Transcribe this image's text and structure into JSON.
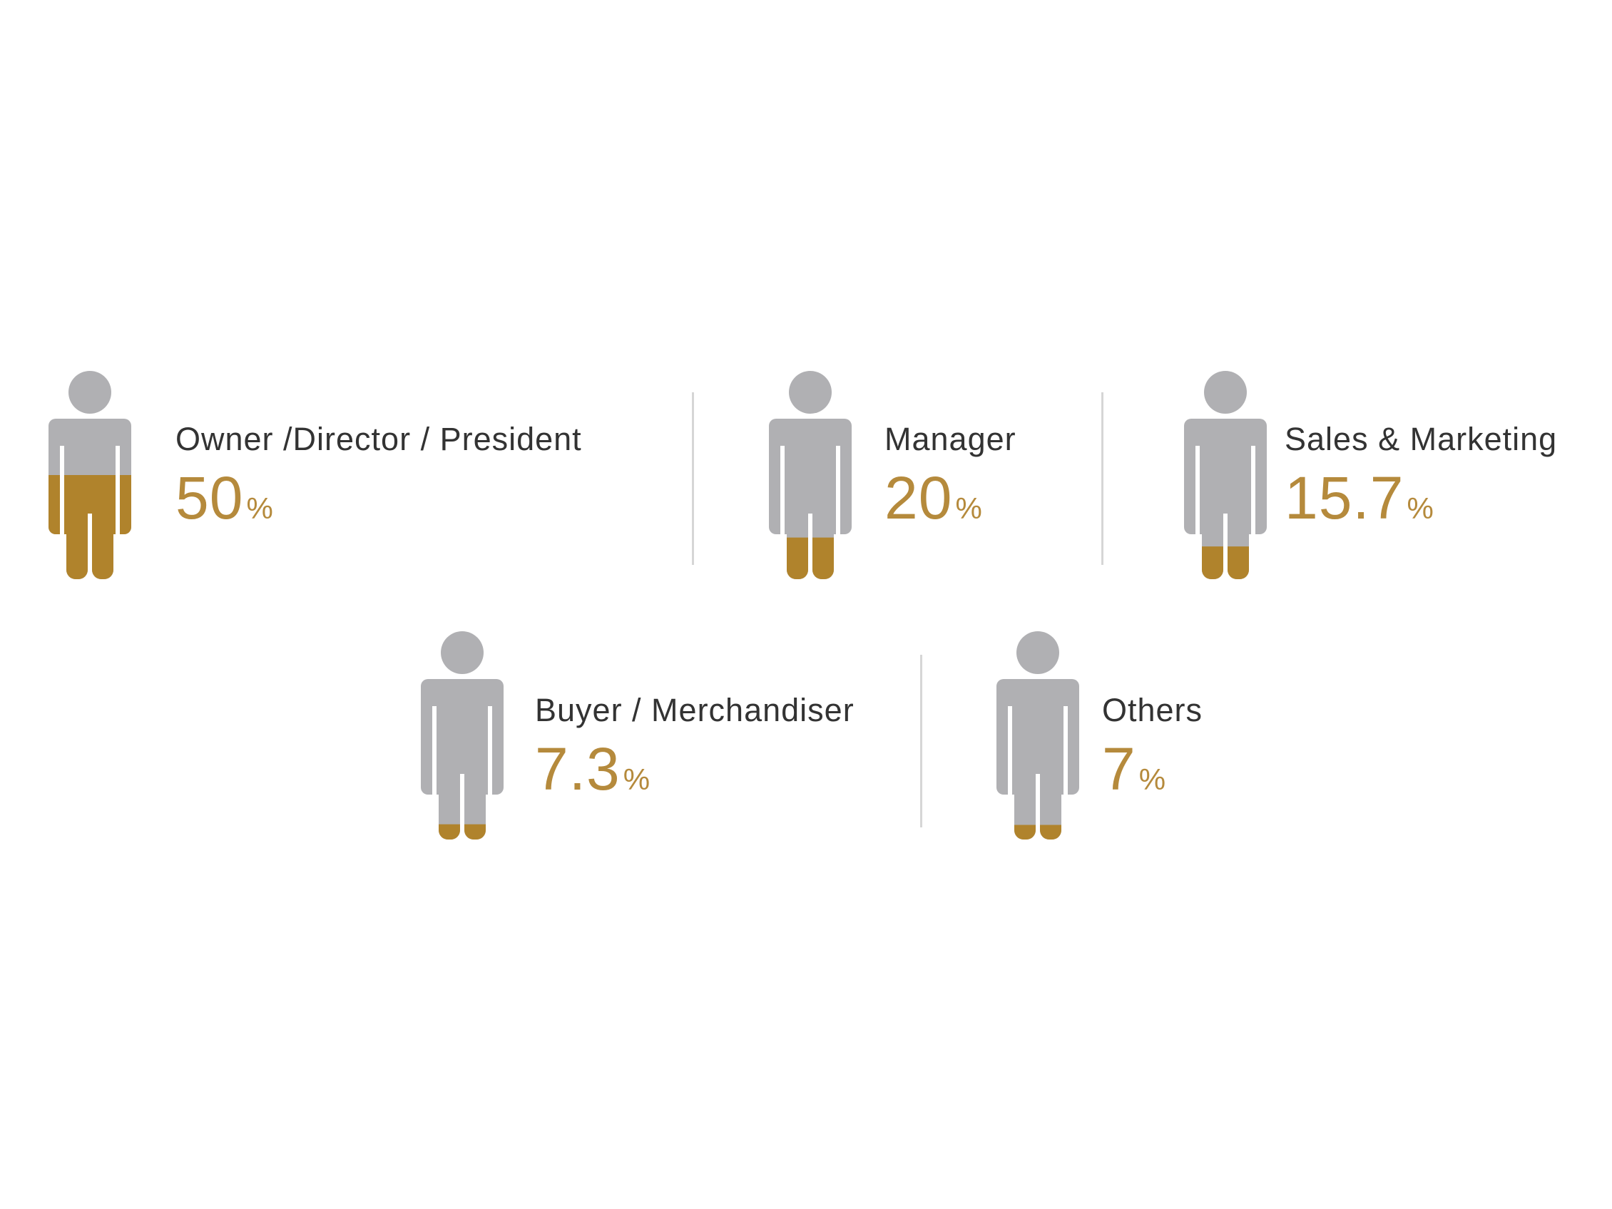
{
  "colors": {
    "figure_base": "#b0b0b3",
    "figure_fill": "#b0832c",
    "label": "#333333",
    "value": "#b58a3c",
    "divider": "#d6d6d6"
  },
  "icon": "person-icon",
  "chart_data": {
    "type": "pictograph",
    "unit": "%",
    "categories": [
      "Owner /Director / President",
      "Manager",
      "Sales & Marketing",
      "Buyer / Merchandiser",
      "Others"
    ],
    "values": [
      50,
      20,
      15.7,
      7.3,
      7
    ],
    "value_labels": [
      "50",
      "20",
      "15.7",
      "7.3",
      "7"
    ]
  }
}
